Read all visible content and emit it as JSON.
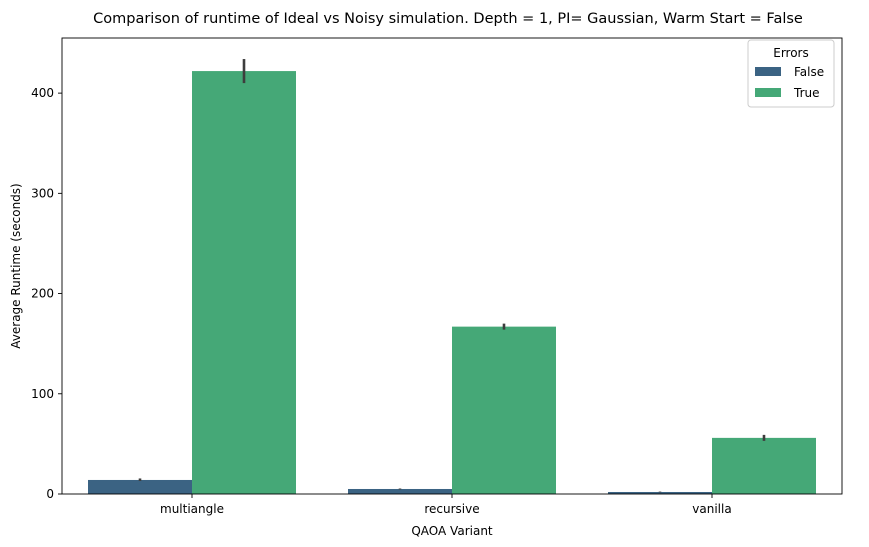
{
  "chart_data": {
    "type": "bar",
    "title": "Comparison of runtime of Ideal vs Noisy simulation. Depth = 1, PI= Gaussian, Warm Start = False",
    "xlabel": "QAOA Variant",
    "ylabel": "Average Runtime (seconds)",
    "categories": [
      "multiangle",
      "recursive",
      "vanilla"
    ],
    "ylim": [
      0,
      455
    ],
    "yticks": [
      0,
      100,
      200,
      300,
      400
    ],
    "grid": false,
    "legend": {
      "title": "Errors",
      "position": "top-right"
    },
    "series": [
      {
        "name": "False",
        "color": "#3b6383",
        "values": [
          14,
          5,
          2
        ],
        "err_low": [
          13,
          4.5,
          1.6
        ],
        "err_high": [
          15.5,
          5.5,
          2.4
        ]
      },
      {
        "name": "True",
        "color": "#45a877",
        "values": [
          422,
          167,
          56
        ],
        "err_low": [
          410,
          164,
          53
        ],
        "err_high": [
          434,
          170,
          59
        ]
      }
    ]
  }
}
